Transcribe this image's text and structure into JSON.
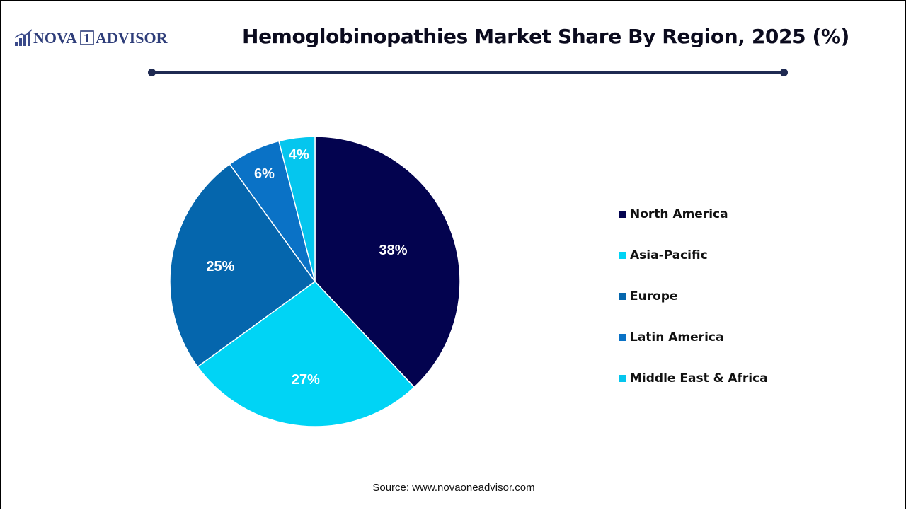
{
  "header": {
    "logo_text": "NOVA 1 ADVISOR",
    "title": "Hemoglobinopathies Market Share By Region, 2025 (%)"
  },
  "colors": {
    "navy": "#03034f",
    "cyan": "#00d4f5",
    "blue": "#0566ad",
    "rule": "#1f2a52"
  },
  "chart_data": {
    "type": "pie",
    "title": "Hemoglobinopathies Market Share By Region, 2025 (%)",
    "legend_position": "right",
    "start_angle": "12 o'clock, clockwise",
    "slices": [
      {
        "label": "North America",
        "value": 38,
        "display": "38%",
        "color": "#03034f"
      },
      {
        "label": "Asia-Pacific",
        "value": 27,
        "display": "27%",
        "color": "#00d4f5"
      },
      {
        "label": "Europe",
        "value": 25,
        "display": "25%",
        "color": "#0566ad"
      },
      {
        "label": "Latin America",
        "value": 6,
        "display": "6%",
        "color": "#0a72c6"
      },
      {
        "label": "Middle East & Africa",
        "value": 4,
        "display": "4%",
        "color": "#05c6ee"
      }
    ]
  },
  "footer": {
    "source": "Source: www.novaoneadvisor.com"
  }
}
